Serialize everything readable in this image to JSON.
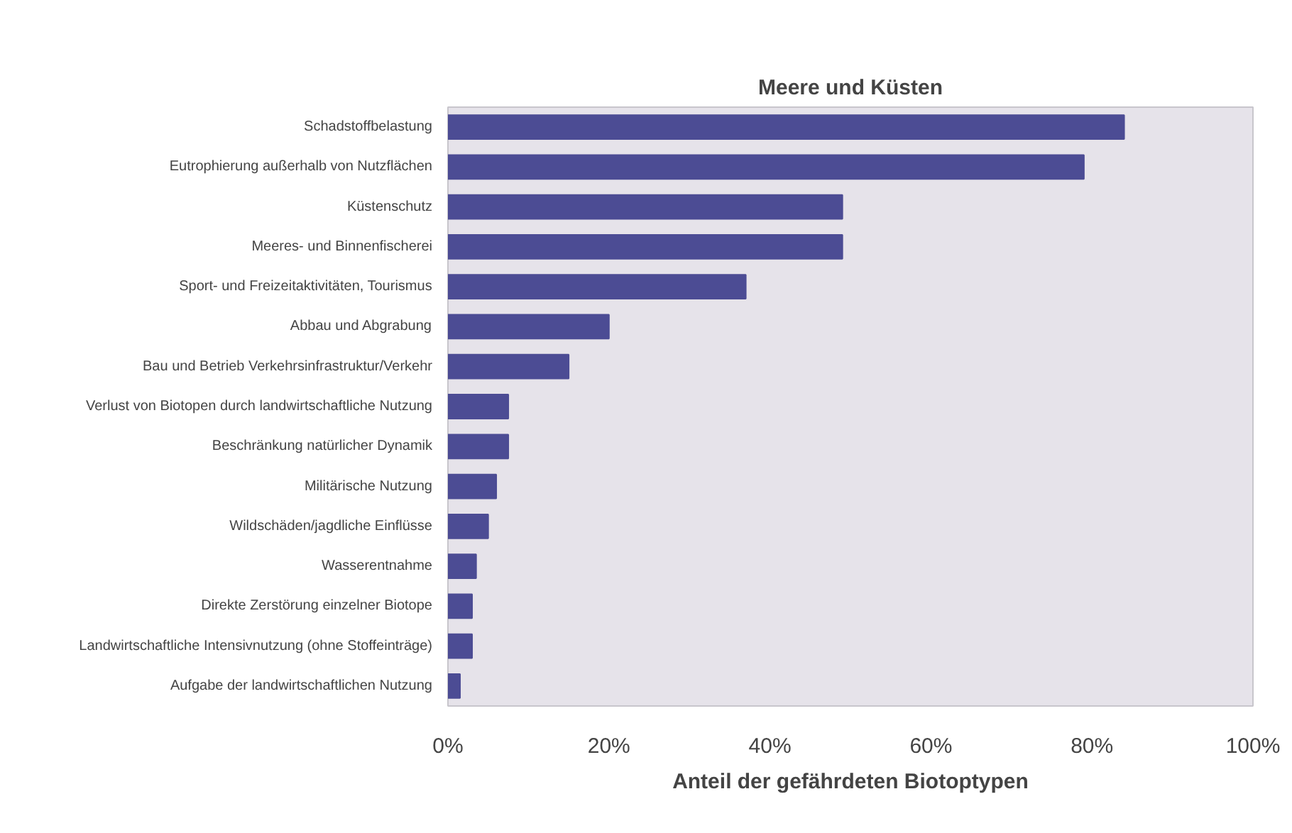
{
  "chart_data": {
    "type": "bar",
    "orientation": "horizontal",
    "title": "Meere und Küsten",
    "xlabel": "Anteil der gefährdeten Biotoptypen",
    "categories": [
      "Schadstoffbelastung",
      "Eutrophierung außerhalb von Nutzflächen",
      "Küstenschutz",
      "Meeres- und Binnenfischerei",
      "Sport- und Freizeitaktivitäten, Tourismus",
      "Abbau und Abgrabung",
      "Bau und Betrieb Verkehrsinfrastruktur/Verkehr",
      "Verlust von Biotopen durch landwirtschaftliche Nutzung",
      "Beschränkung natürlicher Dynamik",
      "Militärische Nutzung",
      "Wildschäden/jagdliche Einflüsse",
      "Wasserentnahme",
      "Direkte Zerstörung einzelner Biotope",
      "Landwirtschaftliche Intensivnutzung (ohne Stoffeinträge)",
      "Aufgabe der landwirtschaftlichen Nutzung"
    ],
    "values": [
      84,
      79,
      49,
      49,
      37,
      20,
      15,
      7.5,
      7.5,
      6,
      5,
      3.5,
      3,
      3,
      1.5
    ],
    "color": "#4c4c94",
    "xlim": [
      0,
      100
    ],
    "xticks": [
      {
        "value": 0,
        "label": "0%"
      },
      {
        "value": 20,
        "label": "20%"
      },
      {
        "value": 40,
        "label": "40%"
      },
      {
        "value": 60,
        "label": "60%"
      },
      {
        "value": 80,
        "label": "80%"
      },
      {
        "value": 100,
        "label": "100%"
      }
    ],
    "grid": false
  }
}
